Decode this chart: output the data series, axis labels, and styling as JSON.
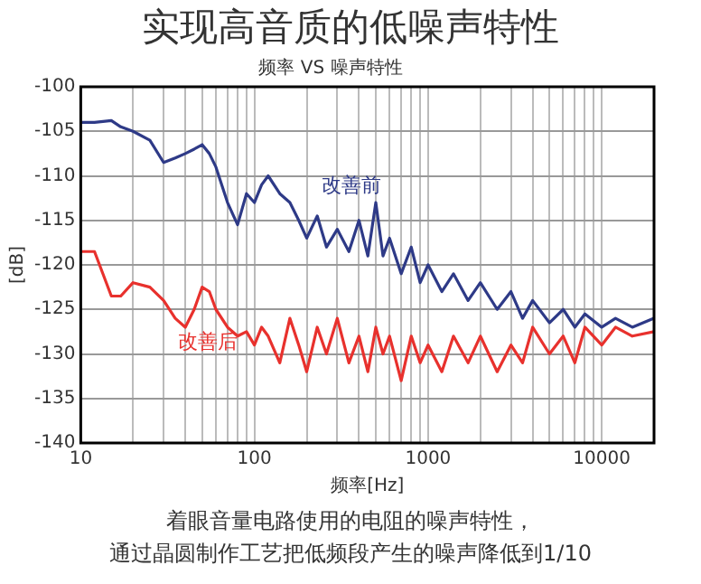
{
  "chart_data": {
    "type": "line",
    "title": "实现高音质的低噪声特性",
    "subtitle": "频率 VS 噪声特性",
    "xlabel": "频率[Hz]",
    "ylabel": "[dB]",
    "x": [
      10,
      12,
      15,
      17,
      20,
      25,
      30,
      35,
      40,
      45,
      50,
      55,
      60,
      70,
      80,
      90,
      100,
      110,
      120,
      140,
      160,
      180,
      200,
      230,
      260,
      300,
      350,
      400,
      450,
      500,
      550,
      600,
      700,
      800,
      900,
      1000,
      1200,
      1400,
      1700,
      2000,
      2500,
      3000,
      3500,
      4000,
      5000,
      6000,
      7000,
      8000,
      10000,
      12000,
      15000,
      20000
    ],
    "series": [
      {
        "name": "改善前",
        "color": "#2e3a87",
        "values": [
          -104,
          -104,
          -103.8,
          -104.5,
          -105,
          -106,
          -108.5,
          -108,
          -107.5,
          -107,
          -106.5,
          -107.5,
          -109,
          -113,
          -115.5,
          -112,
          -113,
          -111,
          -110,
          -112,
          -113,
          -115,
          -117,
          -114.5,
          -118,
          -116,
          -118.5,
          -115,
          -119,
          -113,
          -119,
          -117,
          -121,
          -118,
          -122,
          -120,
          -123,
          -121,
          -124,
          -122,
          -125,
          -123,
          -126,
          -124,
          -126.5,
          -125,
          -127,
          -125.5,
          -127,
          -126,
          -127,
          -126
        ]
      },
      {
        "name": "改善后",
        "color": "#e8312d",
        "values": [
          -118.5,
          -118.5,
          -123.5,
          -123.5,
          -122,
          -122.5,
          -124,
          -126,
          -127,
          -125,
          -122.5,
          -123,
          -125,
          -127,
          -128,
          -127.5,
          -129,
          -127,
          -128,
          -131,
          -126,
          -129,
          -132,
          -127,
          -130,
          -126,
          -131,
          -128,
          -132,
          -127,
          -130,
          -128,
          -133,
          -128,
          -131,
          -129,
          -132,
          -128,
          -131,
          -128,
          -132,
          -129,
          -131,
          -127,
          -130,
          -128,
          -131,
          -127,
          -129,
          -127,
          -128,
          -127.5
        ]
      }
    ],
    "xlim": [
      10,
      20000
    ],
    "ylim": [
      -140,
      -100
    ],
    "xticks": [
      10,
      {
        "value": 20,
        "label": null
      },
      {
        "value": 30,
        "label": null
      },
      {
        "value": 40,
        "label": null
      },
      {
        "value": 50,
        "label": null
      },
      {
        "value": 60,
        "label": null
      },
      {
        "value": 70,
        "label": null
      },
      {
        "value": 80,
        "label": null
      },
      {
        "value": 90,
        "label": null
      },
      100,
      {
        "value": 200,
        "label": null
      },
      {
        "value": 300,
        "label": null
      },
      {
        "value": 400,
        "label": null
      },
      {
        "value": 500,
        "label": null
      },
      {
        "value": 600,
        "label": null
      },
      {
        "value": 700,
        "label": null
      },
      {
        "value": 800,
        "label": null
      },
      {
        "value": 900,
        "label": null
      },
      1000,
      {
        "value": 2000,
        "label": null
      },
      {
        "value": 3000,
        "label": null
      },
      {
        "value": 4000,
        "label": null
      },
      {
        "value": 5000,
        "label": null
      },
      {
        "value": 6000,
        "label": null
      },
      {
        "value": 7000,
        "label": null
      },
      {
        "value": 8000,
        "label": null
      },
      {
        "value": 9000,
        "label": null
      },
      10000
    ],
    "yticks": [
      -140,
      -135,
      -130,
      -125,
      -120,
      -115,
      -110,
      -105,
      -100
    ],
    "log": "x",
    "grid": true,
    "legend": false,
    "marker": "none",
    "line_style": "solid",
    "annotations": [
      "着眼音量电路使用的电阻的噪声特性，",
      "通过晶圆制作工艺把低频段产生的噪声降低到1/10"
    ]
  }
}
